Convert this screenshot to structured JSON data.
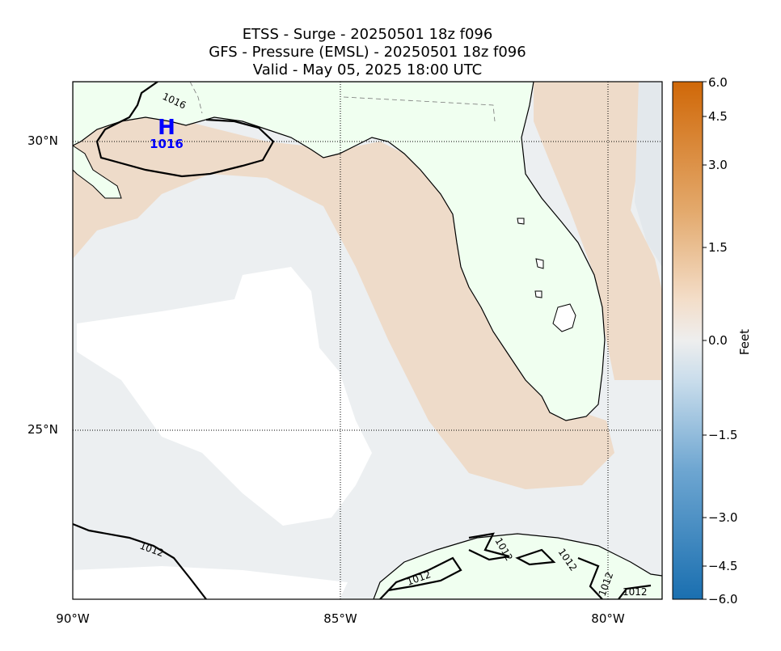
{
  "titles": {
    "line1": "ETSS - Surge - 20250501 18z f096",
    "line2": "GFS -  Pressure (EMSL) - 20250501 18z f096",
    "line3": "Valid - May 05, 2025 18:00 UTC"
  },
  "map": {
    "lat_labels": [
      "30°N",
      "25°N"
    ],
    "lon_labels": [
      "90°W",
      "85°W",
      "80°W"
    ],
    "land_color": "#f0fff0",
    "surge_positive_color": "#eedbc9",
    "surge_neutral_color": "#eceff1"
  },
  "pressure": {
    "high_symbol": "H",
    "high_value": "1016",
    "high_color": "#0000ff",
    "contour_labels": [
      "1016",
      "1012",
      "1012",
      "1012",
      "1012",
      "1012",
      "1012"
    ]
  },
  "colorbar": {
    "label": "Feet",
    "ticks": [
      "6.0",
      "4.5",
      "3.0",
      "1.5",
      "0.0",
      "−1.5",
      "−3.0",
      "−4.5",
      "−6.0"
    ],
    "colors": [
      "#d06808",
      "#e3a96c",
      "#f3ddc8",
      "#eeeeee",
      "#c8dceb",
      "#6ea6d1",
      "#1a6fb0"
    ]
  }
}
